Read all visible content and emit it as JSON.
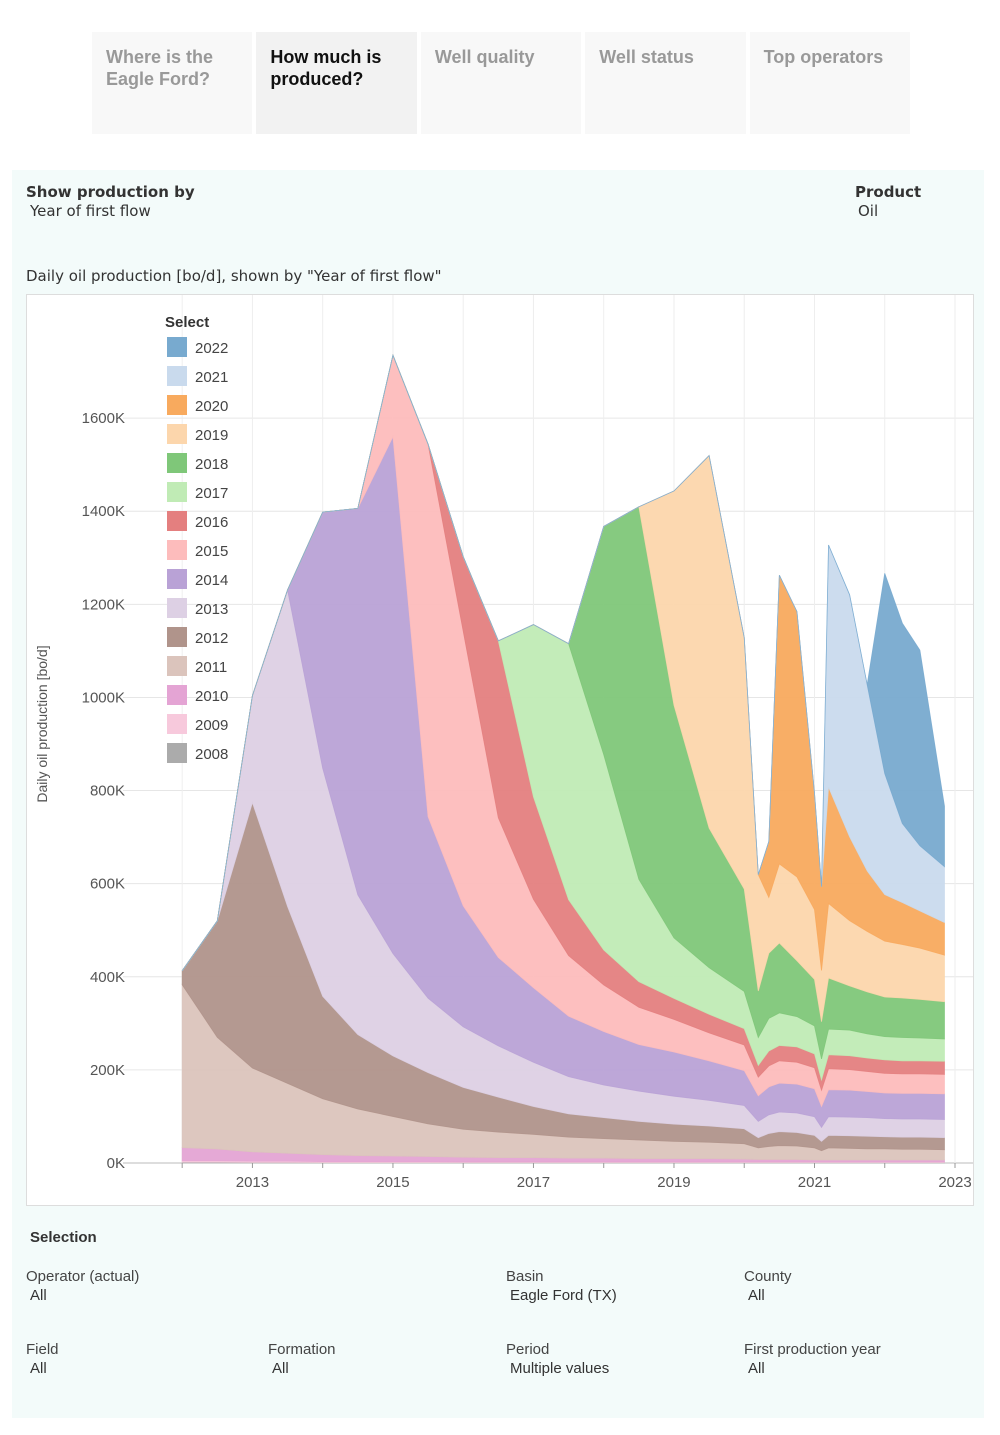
{
  "tabs": [
    {
      "label": "Where is the Eagle Ford?",
      "active": false
    },
    {
      "label": "How much is produced?",
      "active": true
    },
    {
      "label": "Well quality",
      "active": false
    },
    {
      "label": "Well status",
      "active": false
    },
    {
      "label": "Top operators",
      "active": false
    }
  ],
  "controls": {
    "show_by_label": "Show production by",
    "show_by_value": "Year of first flow",
    "product_label": "Product",
    "product_value": "Oil"
  },
  "chart_title_text": "Daily oil production [bo/d], shown by \"Year of first flow\"",
  "selection": {
    "heading": "Selection",
    "operator_label": "Operator (actual)",
    "operator_value": "All",
    "basin_label": "Basin",
    "basin_value": "Eagle Ford (TX)",
    "county_label": "County",
    "county_value": "All",
    "field_label": "Field",
    "field_value": "All",
    "formation_label": "Formation",
    "formation_value": "All",
    "period_label": "Period",
    "period_value": "Multiple values",
    "firstyear_label": "First production year",
    "firstyear_value": "All"
  },
  "chart_data": {
    "type": "area",
    "stacked": true,
    "ylabel": "Daily oil production [bo/d]",
    "xlim": [
      2011.3,
      2023.0
    ],
    "ylim": [
      0,
      1800000
    ],
    "yticks": [
      0,
      200000,
      400000,
      600000,
      800000,
      1000000,
      1200000,
      1400000,
      1600000
    ],
    "ytick_labels": [
      "0K",
      "200K",
      "400K",
      "600K",
      "800K",
      "1000K",
      "1200K",
      "1400K",
      "1600K"
    ],
    "xticks": [
      2013,
      2015,
      2017,
      2019,
      2021,
      2023
    ],
    "xtick_labels": [
      "2013",
      "2015",
      "2017",
      "2019",
      "2021",
      "2023"
    ],
    "legend_title": "Select",
    "legend_position": "top-left",
    "x": [
      2012.0,
      2012.5,
      2013.0,
      2013.5,
      2014.0,
      2014.5,
      2015.0,
      2015.5,
      2016.0,
      2016.5,
      2017.0,
      2017.5,
      2018.0,
      2018.5,
      2019.0,
      2019.5,
      2020.0,
      2020.2,
      2020.35,
      2020.5,
      2020.75,
      2021.0,
      2021.1,
      2021.2,
      2021.5,
      2021.75,
      2022.0,
      2022.25,
      2022.5,
      2022.85
    ],
    "series": [
      {
        "name": "2008",
        "color": "#ababab",
        "values": [
          2000,
          2000,
          1500,
          1500,
          1000,
          1000,
          1000,
          1000,
          1000,
          1000,
          1000,
          1000,
          1000,
          1000,
          1000,
          1000,
          1000,
          1000,
          1000,
          1000,
          1000,
          1000,
          1000,
          1000,
          1000,
          1000,
          1000,
          1000,
          1000,
          1000
        ]
      },
      {
        "name": "2009",
        "color": "#f7c9dc",
        "values": [
          3000,
          3000,
          2500,
          2500,
          2000,
          2000,
          2000,
          2000,
          1500,
          1500,
          1500,
          1500,
          1500,
          1500,
          1500,
          1500,
          1500,
          1500,
          1500,
          1500,
          1500,
          1500,
          1500,
          1500,
          1500,
          1500,
          1500,
          1500,
          1500,
          1500
        ]
      },
      {
        "name": "2010",
        "color": "#e4a4d4",
        "values": [
          28000,
          25000,
          20000,
          17000,
          15000,
          13000,
          12000,
          11000,
          10000,
          9000,
          9000,
          8000,
          8000,
          7000,
          7000,
          7000,
          6000,
          5000,
          5000,
          5000,
          5000,
          4000,
          4000,
          4000,
          4000,
          4000,
          4000,
          4000,
          4000,
          4000
        ]
      },
      {
        "name": "2011",
        "color": "#dbc4bc",
        "values": [
          350000,
          240000,
          180000,
          150000,
          120000,
          100000,
          85000,
          70000,
          60000,
          55000,
          50000,
          45000,
          42000,
          40000,
          37000,
          35000,
          33000,
          25000,
          28000,
          30000,
          29000,
          26000,
          20000,
          26000,
          25000,
          24000,
          24000,
          23000,
          23000,
          22000
        ]
      },
      {
        "name": "2012",
        "color": "#b0948b",
        "values": [
          30000,
          250000,
          570000,
          380000,
          220000,
          160000,
          130000,
          110000,
          90000,
          75000,
          60000,
          50000,
          45000,
          40000,
          37000,
          35000,
          32000,
          22000,
          28000,
          30000,
          29000,
          27000,
          20000,
          27000,
          27000,
          27000,
          26000,
          26000,
          26000,
          26000
        ]
      },
      {
        "name": "2013",
        "color": "#ddd0e4",
        "values": [
          0,
          0,
          230000,
          680000,
          490000,
          300000,
          220000,
          160000,
          130000,
          110000,
          95000,
          80000,
          70000,
          65000,
          60000,
          55000,
          50000,
          35000,
          40000,
          42000,
          42000,
          40000,
          30000,
          40000,
          40000,
          40000,
          39000,
          39000,
          39000,
          39000
        ]
      },
      {
        "name": "2014",
        "color": "#b9a2d6",
        "values": [
          0,
          0,
          0,
          0,
          550000,
          830000,
          1110000,
          390000,
          260000,
          190000,
          160000,
          130000,
          115000,
          100000,
          95000,
          85000,
          75000,
          55000,
          60000,
          62000,
          62000,
          60000,
          45000,
          58000,
          58000,
          56000,
          55000,
          55000,
          55000,
          55000
        ]
      },
      {
        "name": "2015",
        "color": "#fdbcbc",
        "values": [
          0,
          0,
          0,
          0,
          0,
          0,
          175000,
          800000,
          590000,
          300000,
          190000,
          130000,
          100000,
          80000,
          70000,
          60000,
          55000,
          40000,
          45000,
          48000,
          47000,
          45000,
          35000,
          45000,
          44000,
          43000,
          42000,
          42000,
          42000,
          42000
        ]
      },
      {
        "name": "2016",
        "color": "#e47f7f",
        "values": [
          0,
          0,
          0,
          0,
          0,
          0,
          0,
          0,
          160000,
          380000,
          220000,
          120000,
          75000,
          55000,
          45000,
          40000,
          35000,
          25000,
          32000,
          33000,
          33000,
          30000,
          22000,
          30000,
          30000,
          29000,
          29000,
          28000,
          28000,
          28000
        ]
      },
      {
        "name": "2017",
        "color": "#c0ebb5",
        "values": [
          0,
          0,
          0,
          0,
          0,
          0,
          0,
          0,
          0,
          0,
          370000,
          550000,
          420000,
          220000,
          130000,
          100000,
          80000,
          60000,
          70000,
          70000,
          65000,
          60000,
          45000,
          55000,
          55000,
          52000,
          50000,
          50000,
          49000,
          48000
        ]
      },
      {
        "name": "2018",
        "color": "#7fc779",
        "values": [
          0,
          0,
          0,
          0,
          0,
          0,
          0,
          0,
          0,
          0,
          0,
          0,
          490000,
          800000,
          500000,
          300000,
          220000,
          100000,
          140000,
          150000,
          120000,
          100000,
          80000,
          110000,
          95000,
          90000,
          85000,
          85000,
          83000,
          80000
        ]
      },
      {
        "name": "2019",
        "color": "#fcd6ac",
        "values": [
          0,
          0,
          0,
          0,
          0,
          0,
          0,
          0,
          0,
          0,
          0,
          0,
          0,
          0,
          460000,
          800000,
          540000,
          250000,
          120000,
          170000,
          180000,
          150000,
          110000,
          160000,
          140000,
          130000,
          120000,
          115000,
          110000,
          100000
        ]
      },
      {
        "name": "2020",
        "color": "#f8aa5e",
        "values": [
          0,
          0,
          0,
          0,
          0,
          0,
          0,
          0,
          0,
          0,
          0,
          0,
          0,
          0,
          0,
          0,
          0,
          0,
          120000,
          620000,
          570000,
          250000,
          180000,
          250000,
          180000,
          130000,
          100000,
          90000,
          80000,
          70000
        ]
      },
      {
        "name": "2021",
        "color": "#c9daed",
        "values": [
          0,
          0,
          0,
          0,
          0,
          0,
          0,
          0,
          0,
          0,
          0,
          0,
          0,
          0,
          0,
          0,
          0,
          0,
          0,
          0,
          0,
          0,
          0,
          520000,
          520000,
          400000,
          260000,
          170000,
          140000,
          120000
        ]
      },
      {
        "name": "2022",
        "color": "#78aacf",
        "values": [
          0,
          0,
          0,
          0,
          0,
          0,
          0,
          0,
          0,
          0,
          0,
          0,
          0,
          0,
          0,
          0,
          0,
          0,
          0,
          0,
          0,
          0,
          0,
          0,
          0,
          0,
          430000,
          430000,
          420000,
          130000
        ]
      }
    ]
  }
}
